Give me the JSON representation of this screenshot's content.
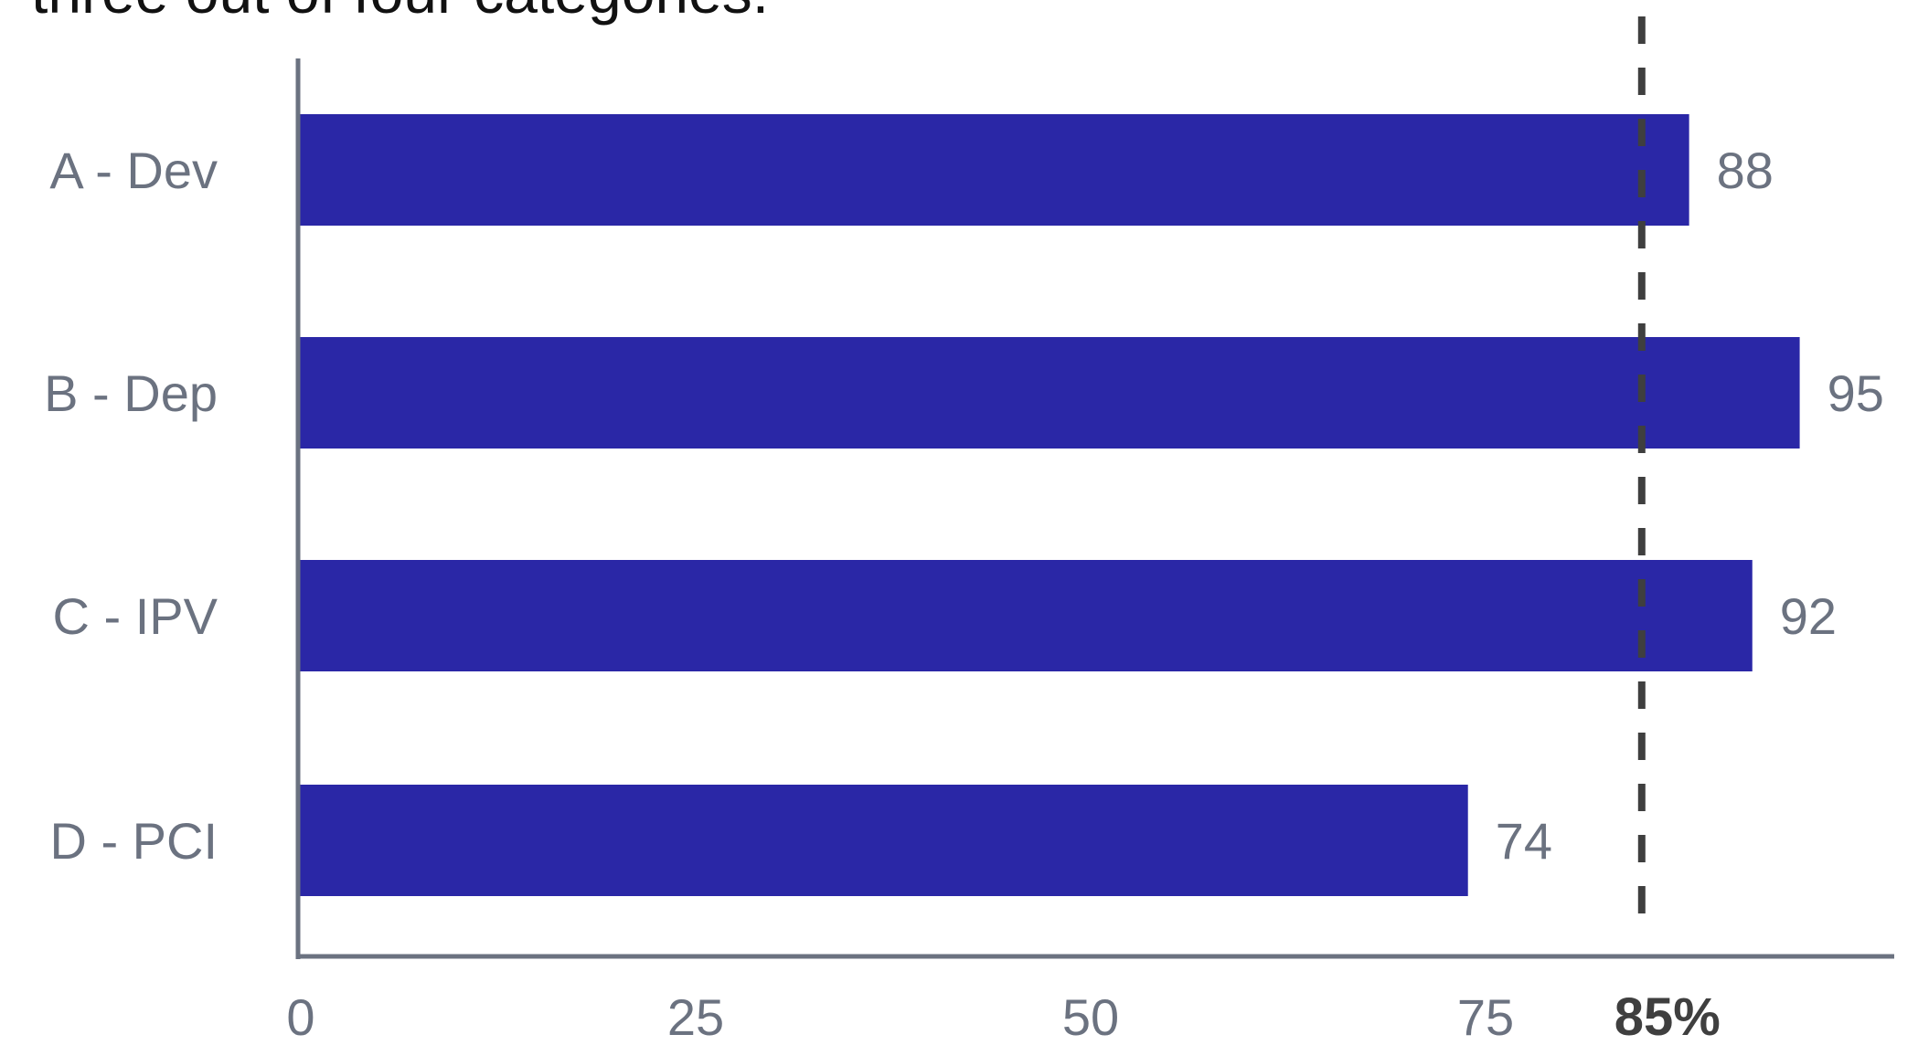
{
  "title": "three out of four categories.",
  "colors": {
    "bar": "#2a27a6",
    "axis": "#6b7280",
    "reference_line": "#3f3f3f",
    "label_text": "#6b7280",
    "title_text": "#111111"
  },
  "chart_data": {
    "type": "bar",
    "orientation": "horizontal",
    "categories": [
      "A - Dev",
      "B - Dep",
      "C - IPV",
      "D - PCI"
    ],
    "values": [
      88,
      95,
      92,
      74
    ],
    "data_labels": [
      "88",
      "95",
      "92",
      "74"
    ],
    "xlim": [
      0,
      100
    ],
    "x_ticks": [
      0,
      25,
      50,
      75
    ],
    "x_tick_labels": [
      "0",
      "25",
      "50",
      "75"
    ],
    "reference_line": {
      "value": 85,
      "label": "85%",
      "style": "dashed"
    },
    "grid": false,
    "legend": "none"
  }
}
